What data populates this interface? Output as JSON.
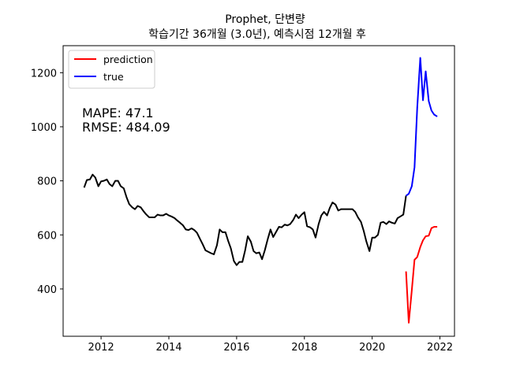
{
  "chart_data": {
    "type": "line",
    "title": "Prophet, 단변량",
    "subtitle": "학습기간 36개월 (3.0년), 예측시점 12개월 후",
    "xlabel": "",
    "ylabel": "",
    "xlim": [
      2010.88,
      2022.43
    ],
    "ylim": [
      225,
      1300
    ],
    "grid": false,
    "legend_position": "top-left",
    "x_ticks": [
      2012,
      2014,
      2016,
      2018,
      2020,
      2022
    ],
    "x_tick_labels": [
      "2012",
      "2014",
      "2016",
      "2018",
      "2020",
      "2022"
    ],
    "y_ticks": [
      400,
      600,
      800,
      1000,
      1200
    ],
    "y_tick_labels": [
      "400",
      "600",
      "800",
      "1000",
      "1200"
    ],
    "annotations": [
      {
        "id": "mape",
        "text": "MAPE: 47.1"
      },
      {
        "id": "rmse",
        "text": "RMSE: 484.09"
      }
    ],
    "legend": [
      {
        "name": "prediction",
        "color": "#ff0000"
      },
      {
        "name": "true",
        "color": "#0000ff"
      }
    ],
    "series": [
      {
        "name": "history",
        "color": "#000000",
        "x": [
          2011.5,
          2011.58,
          2011.67,
          2011.75,
          2011.83,
          2011.92,
          2012.0,
          2012.08,
          2012.17,
          2012.25,
          2012.33,
          2012.42,
          2012.5,
          2012.58,
          2012.67,
          2012.75,
          2012.83,
          2012.92,
          2013.0,
          2013.08,
          2013.17,
          2013.25,
          2013.33,
          2013.42,
          2013.5,
          2013.58,
          2013.67,
          2013.75,
          2013.83,
          2013.92,
          2014.0,
          2014.08,
          2014.17,
          2014.25,
          2014.33,
          2014.42,
          2014.5,
          2014.58,
          2014.67,
          2014.75,
          2014.83,
          2014.92,
          2015.0,
          2015.08,
          2015.17,
          2015.25,
          2015.33,
          2015.42,
          2015.5,
          2015.58,
          2015.67,
          2015.75,
          2015.83,
          2015.92,
          2016.0,
          2016.08,
          2016.17,
          2016.25,
          2016.33,
          2016.42,
          2016.5,
          2016.58,
          2016.67,
          2016.75,
          2016.83,
          2016.92,
          2017.0,
          2017.08,
          2017.17,
          2017.25,
          2017.33,
          2017.42,
          2017.5,
          2017.58,
          2017.67,
          2017.75,
          2017.83,
          2017.92,
          2018.0,
          2018.08,
          2018.17,
          2018.25,
          2018.33,
          2018.42,
          2018.5,
          2018.58,
          2018.67,
          2018.75,
          2018.83,
          2018.92,
          2019.0,
          2019.08,
          2019.17,
          2019.25,
          2019.33,
          2019.42,
          2019.5,
          2019.58,
          2019.67,
          2019.75,
          2019.83,
          2019.92,
          2020.0,
          2020.08,
          2020.17,
          2020.25,
          2020.33,
          2020.42,
          2020.5,
          2020.58,
          2020.67,
          2020.75,
          2020.83,
          2020.92,
          2021.0
        ],
        "values": [
          775,
          803,
          805,
          823,
          812,
          780,
          798,
          800,
          805,
          788,
          780,
          800,
          800,
          780,
          772,
          740,
          714,
          702,
          695,
          707,
          702,
          688,
          676,
          665,
          665,
          665,
          675,
          672,
          672,
          678,
          672,
          668,
          662,
          653,
          645,
          635,
          620,
          618,
          624,
          618,
          608,
          585,
          565,
          543,
          537,
          532,
          528,
          562,
          620,
          610,
          610,
          578,
          550,
          503,
          488,
          500,
          500,
          542,
          595,
          575,
          540,
          532,
          535,
          510,
          542,
          585,
          620,
          592,
          612,
          630,
          628,
          638,
          635,
          640,
          655,
          675,
          662,
          675,
          684,
          632,
          628,
          620,
          590,
          640,
          672,
          685,
          672,
          700,
          720,
          712,
          690,
          695,
          695,
          695,
          695,
          695,
          685,
          665,
          648,
          615,
          575,
          540,
          590,
          590,
          600,
          645,
          648,
          640,
          650,
          645,
          642,
          662,
          668,
          675,
          745
        ]
      },
      {
        "name": "true",
        "color": "#0000ff",
        "x": [
          2021.0,
          2021.08,
          2021.17,
          2021.25,
          2021.33,
          2021.42,
          2021.5,
          2021.58,
          2021.67,
          2021.75,
          2021.83,
          2021.92
        ],
        "values": [
          745,
          752,
          780,
          850,
          1070,
          1255,
          1098,
          1205,
          1095,
          1060,
          1045,
          1038
        ]
      },
      {
        "name": "prediction",
        "color": "#ff0000",
        "x": [
          2021.0,
          2021.08,
          2021.17,
          2021.25,
          2021.33,
          2021.42,
          2021.5,
          2021.58,
          2021.67,
          2021.75,
          2021.83,
          2021.92
        ],
        "values": [
          465,
          275,
          395,
          508,
          518,
          555,
          580,
          595,
          597,
          625,
          630,
          630
        ]
      }
    ]
  }
}
